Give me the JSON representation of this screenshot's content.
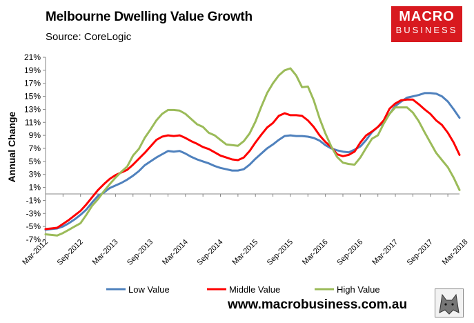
{
  "header": {
    "title": "Melbourne Dwelling Value Growth",
    "source": "Source: CoreLogic"
  },
  "logo": {
    "line1": "MACRO",
    "line2": "BUSINESS"
  },
  "footer": {
    "url": "www.macrobusiness.com.au"
  },
  "chart_data": {
    "type": "line",
    "title": "Melbourne Dwelling Value Growth",
    "xlabel": "",
    "ylabel": "Annual Change",
    "ylim": [
      -7,
      21
    ],
    "yticks": [
      "-7%",
      "-5%",
      "-3%",
      "-1%",
      "1%",
      "3%",
      "5%",
      "7%",
      "9%",
      "11%",
      "13%",
      "15%",
      "17%",
      "19%",
      "21%"
    ],
    "ytick_values": [
      -7,
      -5,
      -3,
      -1,
      1,
      3,
      5,
      7,
      9,
      11,
      13,
      15,
      17,
      19,
      21
    ],
    "x_start": "Mar-2012",
    "x_end": "Jun-2018",
    "xtick_labels": [
      "Mar-2012",
      "Sep-2012",
      "Mar-2013",
      "Sep-2013",
      "Mar-2014",
      "Sep-2014",
      "Mar-2015",
      "Sep-2015",
      "Mar-2016",
      "Sep-2016",
      "Mar-2017",
      "Sep-2017",
      "Mar-2018"
    ],
    "legend_position": "bottom",
    "grid": false,
    "series": [
      {
        "name": "Low Value",
        "color": "#4f81bd",
        "values": [
          -5.5,
          -5.4,
          -5.3,
          -5.0,
          -4.5,
          -3.9,
          -3.2,
          -2.4,
          -1.3,
          -0.3,
          0.2,
          0.9,
          1.3,
          1.7,
          2.2,
          2.8,
          3.5,
          4.4,
          5.0,
          5.6,
          6.1,
          6.6,
          6.5,
          6.6,
          6.2,
          5.7,
          5.3,
          5.0,
          4.7,
          4.3,
          4.0,
          3.8,
          3.6,
          3.6,
          3.8,
          4.5,
          5.4,
          6.2,
          7.0,
          7.6,
          8.3,
          8.9,
          9.0,
          8.9,
          8.9,
          8.8,
          8.6,
          8.2,
          7.5,
          7.0,
          6.7,
          6.5,
          6.4,
          6.8,
          7.3,
          8.3,
          9.5,
          10.3,
          11.0,
          12.3,
          13.5,
          14.2,
          14.8,
          15.0,
          15.2,
          15.5,
          15.5,
          15.4,
          15.0,
          14.2,
          13.0,
          11.7
        ]
      },
      {
        "name": "Middle Value",
        "color": "#ff0000",
        "values": [
          -5.4,
          -5.3,
          -5.2,
          -4.6,
          -4.0,
          -3.3,
          -2.6,
          -1.6,
          -0.5,
          0.6,
          1.5,
          2.3,
          2.9,
          3.3,
          3.7,
          4.5,
          5.4,
          6.3,
          7.3,
          8.3,
          8.8,
          9.0,
          8.9,
          9.0,
          8.6,
          8.1,
          7.7,
          7.2,
          6.9,
          6.4,
          5.9,
          5.6,
          5.3,
          5.2,
          5.6,
          6.6,
          7.9,
          9.1,
          10.2,
          10.9,
          12.0,
          12.4,
          12.1,
          12.1,
          12.0,
          11.3,
          10.3,
          9.0,
          8.0,
          7.2,
          6.1,
          5.8,
          6.0,
          6.5,
          7.9,
          9.0,
          9.6,
          10.3,
          11.3,
          13.1,
          13.9,
          14.4,
          14.5,
          14.5,
          13.8,
          13.0,
          12.3,
          11.3,
          10.6,
          9.4,
          7.9,
          6.0
        ]
      },
      {
        "name": "High Value",
        "color": "#9bbb59",
        "values": [
          -6.2,
          -6.3,
          -6.4,
          -6.0,
          -5.5,
          -5.0,
          -4.5,
          -3.2,
          -1.8,
          -0.8,
          0.4,
          1.5,
          2.5,
          3.4,
          4.2,
          5.9,
          6.9,
          8.6,
          9.9,
          11.3,
          12.3,
          12.9,
          12.9,
          12.8,
          12.3,
          11.5,
          10.7,
          10.3,
          9.4,
          9.0,
          8.3,
          7.6,
          7.5,
          7.4,
          8.1,
          9.3,
          11.1,
          13.4,
          15.5,
          17.0,
          18.2,
          19.0,
          19.3,
          18.2,
          16.4,
          16.5,
          14.4,
          11.6,
          9.3,
          7.3,
          5.7,
          4.8,
          4.6,
          4.5,
          5.6,
          7.1,
          8.5,
          9.0,
          10.8,
          12.3,
          13.3,
          13.3,
          13.3,
          12.5,
          11.2,
          9.5,
          7.9,
          6.3,
          5.2,
          4.1,
          2.5,
          0.6
        ]
      }
    ]
  }
}
